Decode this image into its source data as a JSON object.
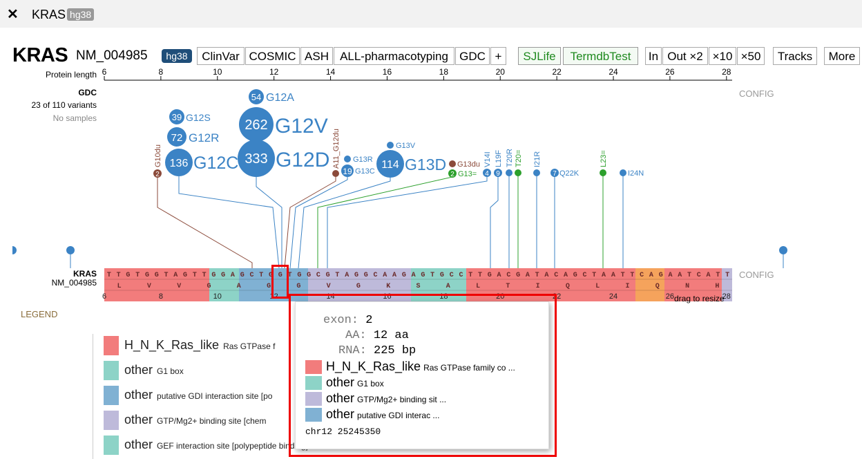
{
  "tab": {
    "title": "KRAS",
    "badge": "hg38"
  },
  "header": {
    "gene": "KRAS",
    "isoform": "NM_004985",
    "genome_button": "hg38",
    "tracks": [
      "ClinVar",
      "COSMIC",
      "ASH",
      "ALL-pharmacotyping",
      "GDC",
      "+"
    ],
    "datasets": [
      "SJLife",
      "TermdbTest"
    ],
    "zoom": [
      "In",
      "Out ×2",
      "×10",
      "×50"
    ],
    "tracks_button": "Tracks",
    "more_button": "More"
  },
  "ruler": {
    "label": "Protein length",
    "ticks": [
      "6",
      "8",
      "10",
      "12",
      "14",
      "16",
      "18",
      "20",
      "22",
      "24",
      "26",
      "28"
    ]
  },
  "gdc_panel": {
    "title": "GDC",
    "variants": "23 of 110 variants",
    "samples": "No samples",
    "config": "CONFIG"
  },
  "colors": {
    "missense": "#3b83c5",
    "frameshift": "#8b4a3a",
    "silent": "#2ca02c",
    "button_dark": "#1f4e79"
  },
  "mutations": [
    {
      "id": "G12A",
      "count": "54"
    },
    {
      "id": "G12V",
      "count": "262"
    },
    {
      "id": "G12S",
      "count": "39"
    },
    {
      "id": "G12R",
      "count": "72"
    },
    {
      "id": "G12C",
      "count": "136"
    },
    {
      "id": "G12D",
      "count": "333"
    },
    {
      "id": "G13V",
      "count": ""
    },
    {
      "id": "G13R",
      "count": ""
    },
    {
      "id": "G13C",
      "count": "19"
    },
    {
      "id": "G13D",
      "count": "114"
    },
    {
      "id": "G13du",
      "count": ""
    },
    {
      "id": "G13=",
      "count": "2"
    },
    {
      "id": "G10du",
      "count": "2"
    },
    {
      "id": "A11_G12du",
      "count": ""
    },
    {
      "id": "V14I",
      "count": "4"
    },
    {
      "id": "L19F",
      "count": "9"
    },
    {
      "id": "T20R",
      "count": ""
    },
    {
      "id": "T20=",
      "count": ""
    },
    {
      "id": "I21R",
      "count": ""
    },
    {
      "id": "Q22K",
      "count": "7"
    },
    {
      "id": "L23=",
      "count": ""
    },
    {
      "id": "I24N",
      "count": ""
    }
  ],
  "sequence_panel": {
    "gene": "KRAS",
    "isoform": "NM_004985",
    "config": "CONFIG",
    "drag_hint": "drag to resize",
    "nucleotides": [
      "T",
      "T",
      "G",
      "T",
      "G",
      "G",
      "T",
      "A",
      "G",
      "T",
      "T",
      "G",
      "G",
      "A",
      "G",
      "C",
      "T",
      "G",
      "G",
      "T",
      "G",
      "G",
      "C",
      "G",
      "T",
      "A",
      "G",
      "G",
      "C",
      "A",
      "A",
      "G",
      "A",
      "G",
      "T",
      "G",
      "C",
      "C",
      "T",
      "T",
      "G",
      "A",
      "C",
      "G",
      "A",
      "T",
      "A",
      "C",
      "A",
      "G",
      "C",
      "T",
      "A",
      "A",
      "T",
      "T",
      "C",
      "A",
      "G",
      "A",
      "A",
      "T",
      "C",
      "A",
      "T",
      "T"
    ],
    "amino_acids": [
      "L",
      "V",
      "V",
      "G",
      "A",
      "G",
      "G",
      "V",
      "G",
      "K",
      "S",
      "A",
      "L",
      "T",
      "I",
      "Q",
      "L",
      "I",
      "Q",
      "N",
      "H"
    ],
    "positions": [
      "6",
      "8",
      "10",
      "12",
      "14",
      "16",
      "18",
      "20",
      "22",
      "24",
      "26",
      "28"
    ]
  },
  "legend": {
    "title": "LEGEND",
    "items": [
      {
        "name": "H_N_K_Ras_like",
        "desc": "Ras GTPase f",
        "color": "#f27c7c"
      },
      {
        "name": "other",
        "desc": "G1 box",
        "color": "#8dd3c7"
      },
      {
        "name": "other",
        "desc": "putative GDI interaction site [po",
        "color": "#80b1d3"
      },
      {
        "name": "other",
        "desc": "GTP/Mg2+ binding site [chem",
        "color": "#bebada"
      },
      {
        "name": "other",
        "desc": "GEF interaction site [polypeptide binding]",
        "color": "#8dd3c7"
      }
    ]
  },
  "tooltip": {
    "exon_key": "exon:",
    "exon_val": "2",
    "aa_key": "AA:",
    "aa_val": "12 aa",
    "rna_key": "RNA:",
    "rna_val": "225 bp",
    "domains": [
      {
        "name": "H_N_K_Ras_like",
        "desc": "Ras GTPase family co ...",
        "color": "#f27c7c"
      },
      {
        "name": "other",
        "desc": "G1 box",
        "color": "#8dd3c7"
      },
      {
        "name": "other",
        "desc": "GTP/Mg2+ binding sit ...",
        "color": "#bebada"
      },
      {
        "name": "other",
        "desc": "putative GDI interac ...",
        "color": "#80b1d3"
      }
    ],
    "coord": "chr12 25245350"
  }
}
